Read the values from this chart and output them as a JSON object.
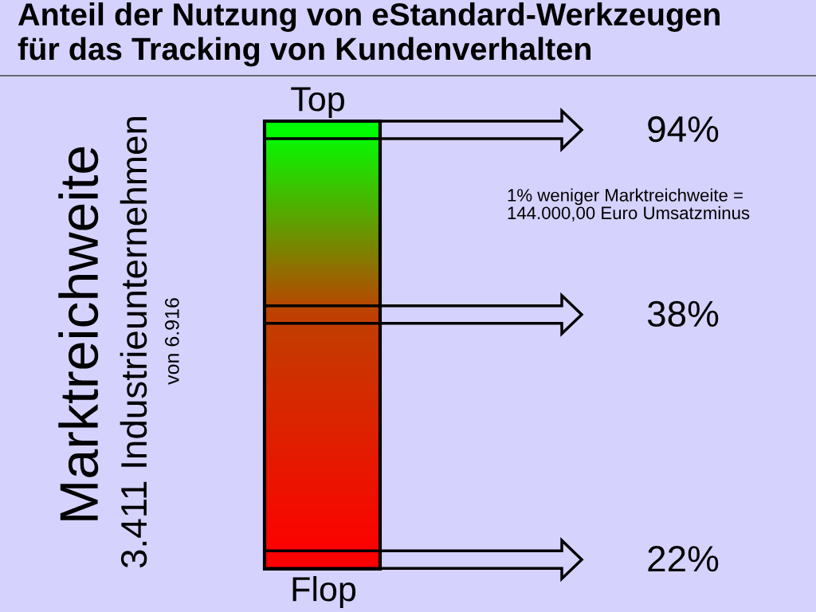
{
  "chart_data": {
    "type": "other",
    "title": "Anteil der Nutzung von eStandard-Werkzeugen\nfür das Tracking von Kundenverhalten",
    "ylabel": "Marktreichweite",
    "values": [
      94,
      38,
      22
    ],
    "value_labels": [
      "94%",
      "38%",
      "22%"
    ],
    "colors": [
      "#00ff00",
      "#c04000",
      "#ff0000"
    ],
    "annotations": [
      "3.411 Industrieunternehmen",
      "von 6.916",
      "Top",
      "Flop",
      "1% weniger Marktreichweite =\n144.000,00 Euro Umsatzminus"
    ]
  }
}
